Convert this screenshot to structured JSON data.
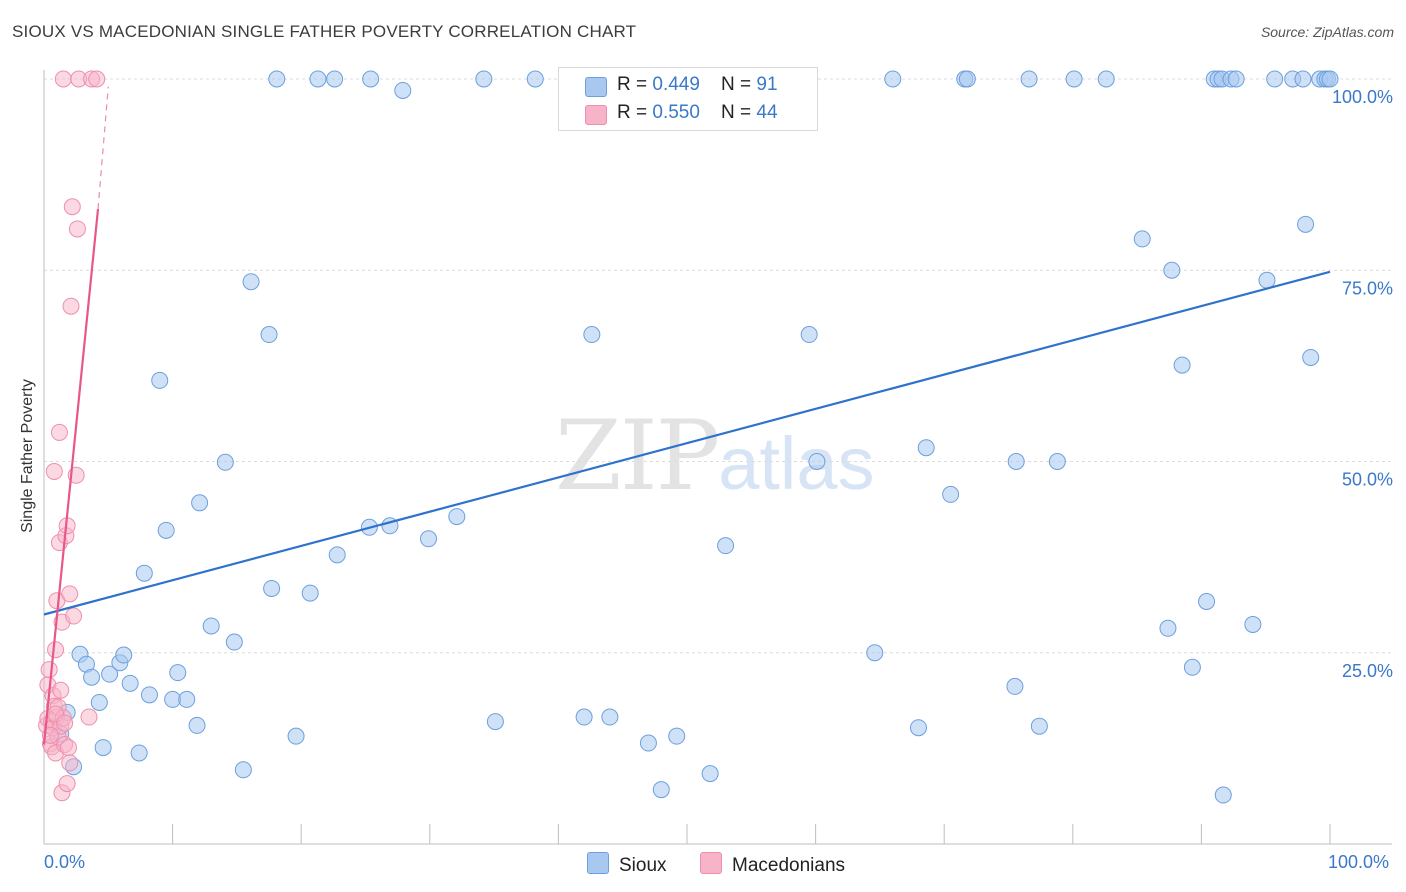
{
  "title": "SIOUX VS MACEDONIAN SINGLE FATHER POVERTY CORRELATION CHART",
  "source": "Source: ZipAtlas.com",
  "watermark": {
    "zip": "ZIP",
    "atlas": "atlas"
  },
  "legend": [
    {
      "r_label": "R = ",
      "r": "0.449",
      "n_label": "N = ",
      "n": "91",
      "color": "#a8c8f0"
    },
    {
      "r_label": "R = ",
      "r": "0.550",
      "n_label": "N = ",
      "n": "44",
      "color": "#f7b3c8"
    }
  ],
  "colors": {
    "sioux_fill": "#a8c8f0",
    "sioux_stroke": "#6d9fde",
    "sioux_line": "#2f72cc",
    "mac_fill": "#f7b3c8",
    "mac_stroke": "#ee8fae",
    "mac_line": "#e8578a",
    "tick_text": "#3a78c9",
    "grid": "#dcdcdc"
  },
  "chart_data": {
    "type": "scatter",
    "title": "SIOUX VS MACEDONIAN SINGLE FATHER POVERTY CORRELATION CHART",
    "xlabel": "",
    "ylabel": "Single Father Poverty",
    "xlim": [
      0,
      100
    ],
    "ylim": [
      0,
      102
    ],
    "x_tick_labels": [
      "0.0%",
      "100.0%"
    ],
    "y_ticks": [
      25,
      50,
      75,
      100
    ],
    "y_tick_labels": [
      "25.0%",
      "50.0%",
      "75.0%",
      "100.0%"
    ],
    "grid": "horizontal dashed",
    "legend_position": "top-center",
    "series": [
      {
        "name": "Sioux",
        "r": 0.449,
        "n": 91,
        "trend": {
          "x": [
            0,
            100
          ],
          "y": [
            30,
            74.8
          ]
        },
        "points": [
          [
            1.3,
            14.4
          ],
          [
            1.8,
            17.2
          ],
          [
            2.3,
            10.1
          ],
          [
            2.8,
            24.8
          ],
          [
            3.3,
            23.5
          ],
          [
            3.7,
            21.8
          ],
          [
            4.3,
            18.5
          ],
          [
            4.6,
            12.6
          ],
          [
            5.1,
            22.2
          ],
          [
            5.9,
            23.7
          ],
          [
            6.2,
            24.7
          ],
          [
            6.7,
            21.0
          ],
          [
            7.4,
            11.9
          ],
          [
            7.8,
            35.4
          ],
          [
            8.2,
            19.5
          ],
          [
            9.0,
            60.6
          ],
          [
            9.5,
            41.0
          ],
          [
            10.0,
            18.9
          ],
          [
            10.4,
            22.4
          ],
          [
            11.1,
            18.9
          ],
          [
            11.9,
            15.5
          ],
          [
            12.1,
            44.6
          ],
          [
            13.0,
            28.5
          ],
          [
            14.1,
            49.9
          ],
          [
            14.8,
            26.4
          ],
          [
            15.5,
            9.7
          ],
          [
            16.1,
            73.5
          ],
          [
            17.5,
            66.6
          ],
          [
            17.7,
            33.4
          ],
          [
            18.1,
            100
          ],
          [
            19.6,
            14.1
          ],
          [
            20.7,
            32.8
          ],
          [
            21.3,
            100
          ],
          [
            22.6,
            100
          ],
          [
            22.8,
            37.8
          ],
          [
            25.3,
            41.4
          ],
          [
            25.4,
            100
          ],
          [
            26.9,
            41.6
          ],
          [
            27.9,
            98.5
          ],
          [
            29.9,
            39.9
          ],
          [
            32.1,
            42.8
          ],
          [
            34.2,
            100
          ],
          [
            35.1,
            16.0
          ],
          [
            38.2,
            100
          ],
          [
            42.0,
            16.6
          ],
          [
            42.6,
            66.6
          ],
          [
            44.0,
            16.6
          ],
          [
            47.0,
            13.2
          ],
          [
            48.0,
            7.1
          ],
          [
            49.2,
            14.1
          ],
          [
            51.8,
            9.2
          ],
          [
            53.0,
            39.0
          ],
          [
            59.5,
            66.6
          ],
          [
            60.1,
            50.0
          ],
          [
            64.6,
            25.0
          ],
          [
            66.0,
            100
          ],
          [
            68.0,
            15.2
          ],
          [
            68.6,
            51.8
          ],
          [
            70.5,
            45.7
          ],
          [
            71.6,
            100
          ],
          [
            71.8,
            100
          ],
          [
            75.5,
            20.6
          ],
          [
            75.6,
            50.0
          ],
          [
            76.6,
            100
          ],
          [
            77.4,
            15.4
          ],
          [
            78.8,
            50.0
          ],
          [
            80.1,
            100
          ],
          [
            82.6,
            100
          ],
          [
            85.4,
            79.1
          ],
          [
            87.4,
            28.2
          ],
          [
            87.7,
            75.0
          ],
          [
            88.5,
            62.6
          ],
          [
            89.3,
            23.1
          ],
          [
            90.4,
            31.7
          ],
          [
            91.0,
            100
          ],
          [
            91.3,
            100
          ],
          [
            91.6,
            100
          ],
          [
            91.7,
            6.4
          ],
          [
            92.3,
            100
          ],
          [
            92.7,
            100
          ],
          [
            94.0,
            28.7
          ],
          [
            95.1,
            73.7
          ],
          [
            95.7,
            100
          ],
          [
            97.1,
            100
          ],
          [
            97.9,
            100
          ],
          [
            98.1,
            81.0
          ],
          [
            98.5,
            63.6
          ],
          [
            99.2,
            100
          ],
          [
            99.6,
            100
          ],
          [
            99.8,
            100
          ],
          [
            100,
            100
          ]
        ]
      },
      {
        "name": "Macedonians",
        "r": 0.55,
        "n": 44,
        "trend": {
          "x": [
            0,
            4.2
          ],
          "y": [
            13,
            83
          ]
        },
        "trend_ext": {
          "x": [
            4.2,
            5.0
          ],
          "y": [
            83,
            99
          ]
        },
        "points": [
          [
            0.2,
            15.5
          ],
          [
            0.3,
            16.4
          ],
          [
            0.3,
            20.8
          ],
          [
            0.4,
            22.8
          ],
          [
            0.5,
            13.1
          ],
          [
            0.6,
            12.7
          ],
          [
            0.6,
            16.0
          ],
          [
            0.7,
            15.2
          ],
          [
            0.7,
            19.4
          ],
          [
            0.8,
            18.0
          ],
          [
            0.8,
            48.7
          ],
          [
            0.9,
            25.4
          ],
          [
            0.9,
            11.9
          ],
          [
            1.0,
            16.6
          ],
          [
            1.0,
            31.8
          ],
          [
            1.1,
            14.0
          ],
          [
            1.1,
            17.9
          ],
          [
            1.2,
            39.4
          ],
          [
            1.2,
            53.8
          ],
          [
            1.3,
            15.4
          ],
          [
            1.3,
            20.1
          ],
          [
            1.4,
            6.7
          ],
          [
            1.4,
            29.0
          ],
          [
            1.5,
            16.5
          ],
          [
            1.5,
            100
          ],
          [
            1.6,
            13.0
          ],
          [
            1.7,
            40.3
          ],
          [
            1.8,
            41.6
          ],
          [
            1.8,
            7.9
          ],
          [
            1.9,
            12.6
          ],
          [
            2.0,
            10.6
          ],
          [
            2.0,
            32.7
          ],
          [
            2.1,
            70.3
          ],
          [
            2.2,
            83.3
          ],
          [
            2.3,
            29.8
          ],
          [
            2.5,
            48.2
          ],
          [
            2.6,
            80.4
          ],
          [
            2.7,
            100
          ],
          [
            3.5,
            16.6
          ],
          [
            3.7,
            100
          ],
          [
            4.1,
            100
          ],
          [
            0.5,
            14.2
          ],
          [
            0.9,
            17.0
          ],
          [
            1.6,
            15.8
          ]
        ]
      }
    ]
  },
  "bottom_legend": [
    {
      "label": "Sioux",
      "color": "#a8c8f0"
    },
    {
      "label": "Macedonians",
      "color": "#f7b3c8"
    }
  ]
}
